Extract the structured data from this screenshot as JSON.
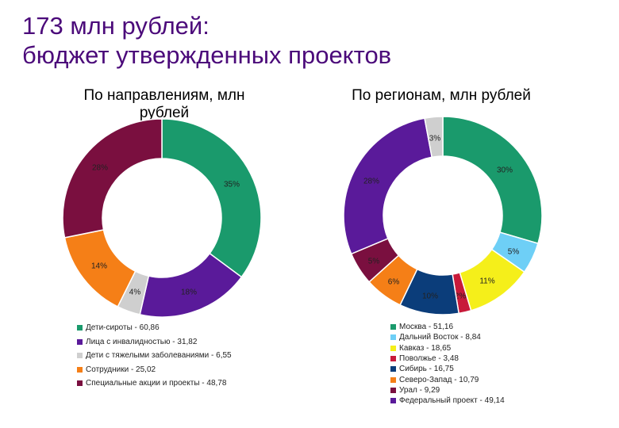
{
  "title": {
    "line1": "173 млн рублей:",
    "line2": "бюджет утвержденных проектов"
  },
  "chart_data": [
    {
      "type": "donut",
      "title": "По направлениям, млн рублей",
      "series": [
        {
          "name": "Дети-сироты - 60,86",
          "value": 60.86,
          "label": "35%",
          "color": "#1a9a6c"
        },
        {
          "name": "Лица с инвалидностью - 31,82",
          "value": 31.82,
          "label": "18%",
          "color": "#5a1a9a"
        },
        {
          "name": "Дети с тяжелыми заболеваниями - 6,55",
          "value": 6.55,
          "label": "4%",
          "color": "#cfcfcf"
        },
        {
          "name": "Сотрудники - 25,02",
          "value": 25.02,
          "label": "14%",
          "color": "#f57f17"
        },
        {
          "name": "Специальные акции и проекты - 48,78",
          "value": 48.78,
          "label": "28%",
          "color": "#7a0f3f"
        }
      ]
    },
    {
      "type": "donut",
      "title": "По регионам, млн рублей",
      "series": [
        {
          "name": "Москва - 51,16",
          "value": 51.16,
          "label": "30%",
          "color": "#1a9a6c"
        },
        {
          "name": "Дальний Восток - 8,84",
          "value": 8.84,
          "label": "5%",
          "color": "#6ecff6"
        },
        {
          "name": "Кавказ - 18,65",
          "value": 18.65,
          "label": "11%",
          "color": "#f5ef1a"
        },
        {
          "name": "Поволжье - 3,48",
          "value": 3.48,
          "label": "2%",
          "color": "#c81a3a"
        },
        {
          "name": "Сибирь - 16,75",
          "value": 16.75,
          "label": "10%",
          "color": "#0b3d7a"
        },
        {
          "name": "Северо-Запад - 10,79",
          "value": 10.79,
          "label": "6%",
          "color": "#f57f17"
        },
        {
          "name": "Урал - 9,29",
          "value": 9.29,
          "label": "5%",
          "color": "#7a0f3f"
        },
        {
          "name": "Федеральный проект - 49,14",
          "value": 49.14,
          "label": "28%",
          "color": "#5a1a9a"
        },
        {
          "name": "",
          "value": 5.1,
          "label": "3%",
          "color": "#cfcfcf"
        }
      ]
    }
  ]
}
